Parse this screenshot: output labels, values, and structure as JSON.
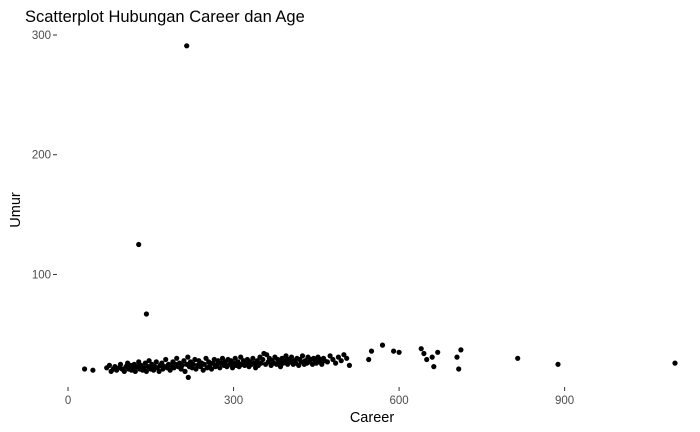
{
  "chart_data": {
    "type": "scatter",
    "title": "Scatterplot Hubungan Career dan Age",
    "xlabel": "Career",
    "ylabel": "Umur",
    "xlim": [
      -20,
      1120
    ],
    "ylim": [
      6,
      305
    ],
    "xticks": [
      0,
      300,
      600,
      900
    ],
    "yticks": [
      100,
      200,
      300
    ],
    "grid": false,
    "point_color": "#000000",
    "points": [
      [
        215,
        291
      ],
      [
        128,
        125
      ],
      [
        142,
        67
      ],
      [
        30,
        21
      ],
      [
        45,
        20
      ],
      [
        70,
        22
      ],
      [
        75,
        24
      ],
      [
        78,
        19
      ],
      [
        82,
        21
      ],
      [
        85,
        23
      ],
      [
        88,
        20
      ],
      [
        92,
        22
      ],
      [
        95,
        25
      ],
      [
        98,
        21
      ],
      [
        102,
        19
      ],
      [
        105,
        23
      ],
      [
        108,
        26
      ],
      [
        110,
        21
      ],
      [
        113,
        24
      ],
      [
        115,
        20
      ],
      [
        118,
        22
      ],
      [
        120,
        25
      ],
      [
        122,
        19
      ],
      [
        125,
        23
      ],
      [
        128,
        27
      ],
      [
        130,
        21
      ],
      [
        132,
        24
      ],
      [
        135,
        20
      ],
      [
        137,
        22
      ],
      [
        140,
        26
      ],
      [
        142,
        19
      ],
      [
        145,
        23
      ],
      [
        147,
        28
      ],
      [
        150,
        21
      ],
      [
        152,
        25
      ],
      [
        155,
        20
      ],
      [
        157,
        23
      ],
      [
        160,
        27
      ],
      [
        162,
        22
      ],
      [
        165,
        19
      ],
      [
        167,
        24
      ],
      [
        170,
        26
      ],
      [
        172,
        21
      ],
      [
        175,
        23
      ],
      [
        177,
        29
      ],
      [
        180,
        22
      ],
      [
        182,
        25
      ],
      [
        185,
        20
      ],
      [
        187,
        24
      ],
      [
        190,
        27
      ],
      [
        192,
        22
      ],
      [
        195,
        25
      ],
      [
        197,
        30
      ],
      [
        200,
        23
      ],
      [
        202,
        26
      ],
      [
        205,
        21
      ],
      [
        207,
        24
      ],
      [
        210,
        28
      ],
      [
        212,
        19
      ],
      [
        215,
        25
      ],
      [
        217,
        31
      ],
      [
        218,
        14
      ],
      [
        220,
        23
      ],
      [
        222,
        27
      ],
      [
        225,
        22
      ],
      [
        227,
        25
      ],
      [
        230,
        29
      ],
      [
        232,
        21
      ],
      [
        235,
        24
      ],
      [
        237,
        28
      ],
      [
        240,
        23
      ],
      [
        242,
        26
      ],
      [
        245,
        20
      ],
      [
        247,
        25
      ],
      [
        250,
        30
      ],
      [
        252,
        22
      ],
      [
        255,
        27
      ],
      [
        257,
        24
      ],
      [
        260,
        21
      ],
      [
        262,
        26
      ],
      [
        265,
        29
      ],
      [
        267,
        23
      ],
      [
        270,
        25
      ],
      [
        272,
        28
      ],
      [
        275,
        22
      ],
      [
        278,
        26
      ],
      [
        280,
        30
      ],
      [
        283,
        24
      ],
      [
        285,
        27
      ],
      [
        288,
        23
      ],
      [
        290,
        29
      ],
      [
        293,
        25
      ],
      [
        295,
        28
      ],
      [
        298,
        22
      ],
      [
        300,
        26
      ],
      [
        303,
        30
      ],
      [
        305,
        24
      ],
      [
        308,
        27
      ],
      [
        310,
        23
      ],
      [
        313,
        31
      ],
      [
        315,
        25
      ],
      [
        318,
        28
      ],
      [
        320,
        24
      ],
      [
        323,
        26
      ],
      [
        325,
        29
      ],
      [
        328,
        23
      ],
      [
        330,
        27
      ],
      [
        333,
        25
      ],
      [
        335,
        30
      ],
      [
        338,
        26
      ],
      [
        340,
        22
      ],
      [
        343,
        28
      ],
      [
        345,
        24
      ],
      [
        348,
        31
      ],
      [
        350,
        26
      ],
      [
        353,
        29
      ],
      [
        355,
        34
      ],
      [
        358,
        25
      ],
      [
        360,
        33
      ],
      [
        363,
        27
      ],
      [
        365,
        30
      ],
      [
        368,
        24
      ],
      [
        370,
        28
      ],
      [
        373,
        26
      ],
      [
        375,
        31
      ],
      [
        378,
        25
      ],
      [
        380,
        29
      ],
      [
        383,
        27
      ],
      [
        385,
        23
      ],
      [
        388,
        30
      ],
      [
        390,
        26
      ],
      [
        393,
        28
      ],
      [
        395,
        32
      ],
      [
        398,
        25
      ],
      [
        400,
        29
      ],
      [
        403,
        27
      ],
      [
        405,
        31
      ],
      [
        408,
        25
      ],
      [
        410,
        28
      ],
      [
        413,
        26
      ],
      [
        415,
        30
      ],
      [
        418,
        24
      ],
      [
        420,
        29
      ],
      [
        423,
        27
      ],
      [
        425,
        32
      ],
      [
        428,
        25
      ],
      [
        430,
        28
      ],
      [
        433,
        26
      ],
      [
        435,
        31
      ],
      [
        438,
        27
      ],
      [
        440,
        29
      ],
      [
        443,
        25
      ],
      [
        445,
        30
      ],
      [
        448,
        28
      ],
      [
        450,
        26
      ],
      [
        453,
        31
      ],
      [
        455,
        27
      ],
      [
        458,
        29
      ],
      [
        460,
        25
      ],
      [
        463,
        30
      ],
      [
        465,
        28
      ],
      [
        470,
        27
      ],
      [
        475,
        32
      ],
      [
        480,
        29
      ],
      [
        485,
        26
      ],
      [
        490,
        31
      ],
      [
        495,
        28
      ],
      [
        500,
        33
      ],
      [
        505,
        30
      ],
      [
        510,
        24
      ],
      [
        545,
        29
      ],
      [
        550,
        36
      ],
      [
        570,
        41
      ],
      [
        590,
        36
      ],
      [
        600,
        35
      ],
      [
        640,
        38
      ],
      [
        645,
        34
      ],
      [
        650,
        29
      ],
      [
        660,
        31
      ],
      [
        663,
        23
      ],
      [
        670,
        35
      ],
      [
        705,
        31
      ],
      [
        708,
        21
      ],
      [
        712,
        37
      ],
      [
        815,
        30
      ],
      [
        888,
        25
      ],
      [
        1100,
        26
      ]
    ]
  }
}
